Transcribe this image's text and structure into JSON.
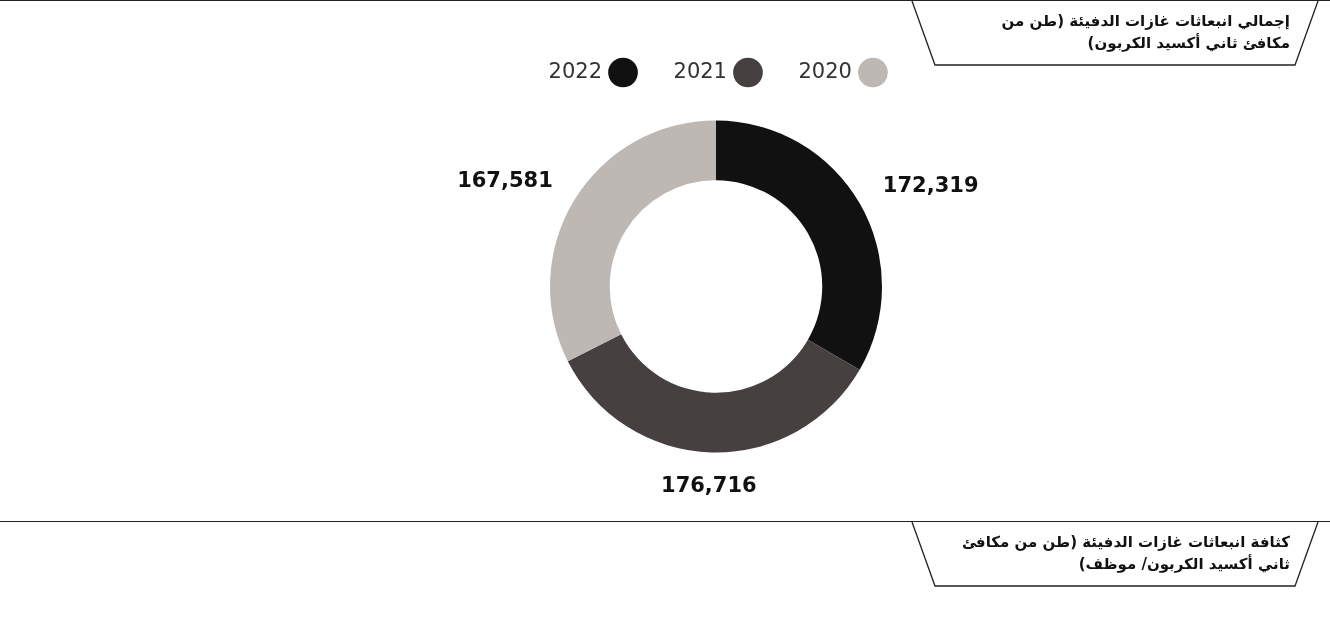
{
  "chart_data": {
    "type": "donut",
    "title": "إجمالي انبعاثات غازات الدفيئة (طن من مكافئ ثاني أكسيد الكربون)",
    "categories": [
      "2022",
      "2021",
      "2020"
    ],
    "values": [
      172319,
      176716,
      167581
    ],
    "colors": [
      "#111111",
      "#464140",
      "#bdb8b4"
    ],
    "value_labels": [
      "172,319",
      "176,716",
      "167,581"
    ],
    "legend": "top",
    "annotations": [
      "كثافة انبعاثات غازات الدفيئة (طن من مكافئ ثاني أكسيد الكربون/ موظف)"
    ]
  }
}
